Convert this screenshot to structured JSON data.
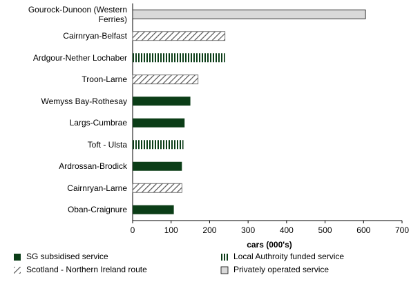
{
  "chart_data": {
    "type": "hbar",
    "categories": [
      "Gourock-Dunoon (Western Ferries)",
      "Cairnryan-Belfast",
      "Ardgour-Nether Lochaber",
      "Troon-Larne",
      "Wemyss Bay-Rothesay",
      "Largs-Cumbrae",
      "Toft - Ulsta",
      "Ardrossan-Brodick",
      "Cairnryan-Larne",
      "Oban-Craignure"
    ],
    "series": [
      {
        "name": "SG subsidised service",
        "color": "#0b3d17",
        "pattern": "solid",
        "values": [
          null,
          null,
          null,
          null,
          150,
          135,
          null,
          128,
          null,
          107
        ]
      },
      {
        "name": "Local Authroity funded service",
        "color": "#0b3d17",
        "pattern": "vertical",
        "values": [
          null,
          null,
          240,
          null,
          null,
          null,
          132,
          null,
          null,
          null
        ]
      },
      {
        "name": "Scotland - Northern Ireland route",
        "color": "#555555",
        "pattern": "diagonal",
        "values": [
          null,
          240,
          null,
          170,
          null,
          null,
          null,
          null,
          128,
          null
        ]
      },
      {
        "name": "Privately operated service",
        "color": "#d9d9d9",
        "pattern": "solid",
        "values": [
          605,
          null,
          null,
          null,
          null,
          null,
          null,
          null,
          null,
          null
        ]
      }
    ],
    "xlabel": "cars (000's)",
    "xlim": [
      0,
      700
    ],
    "xticks": [
      0,
      100,
      200,
      300,
      400,
      500,
      600,
      700
    ]
  }
}
